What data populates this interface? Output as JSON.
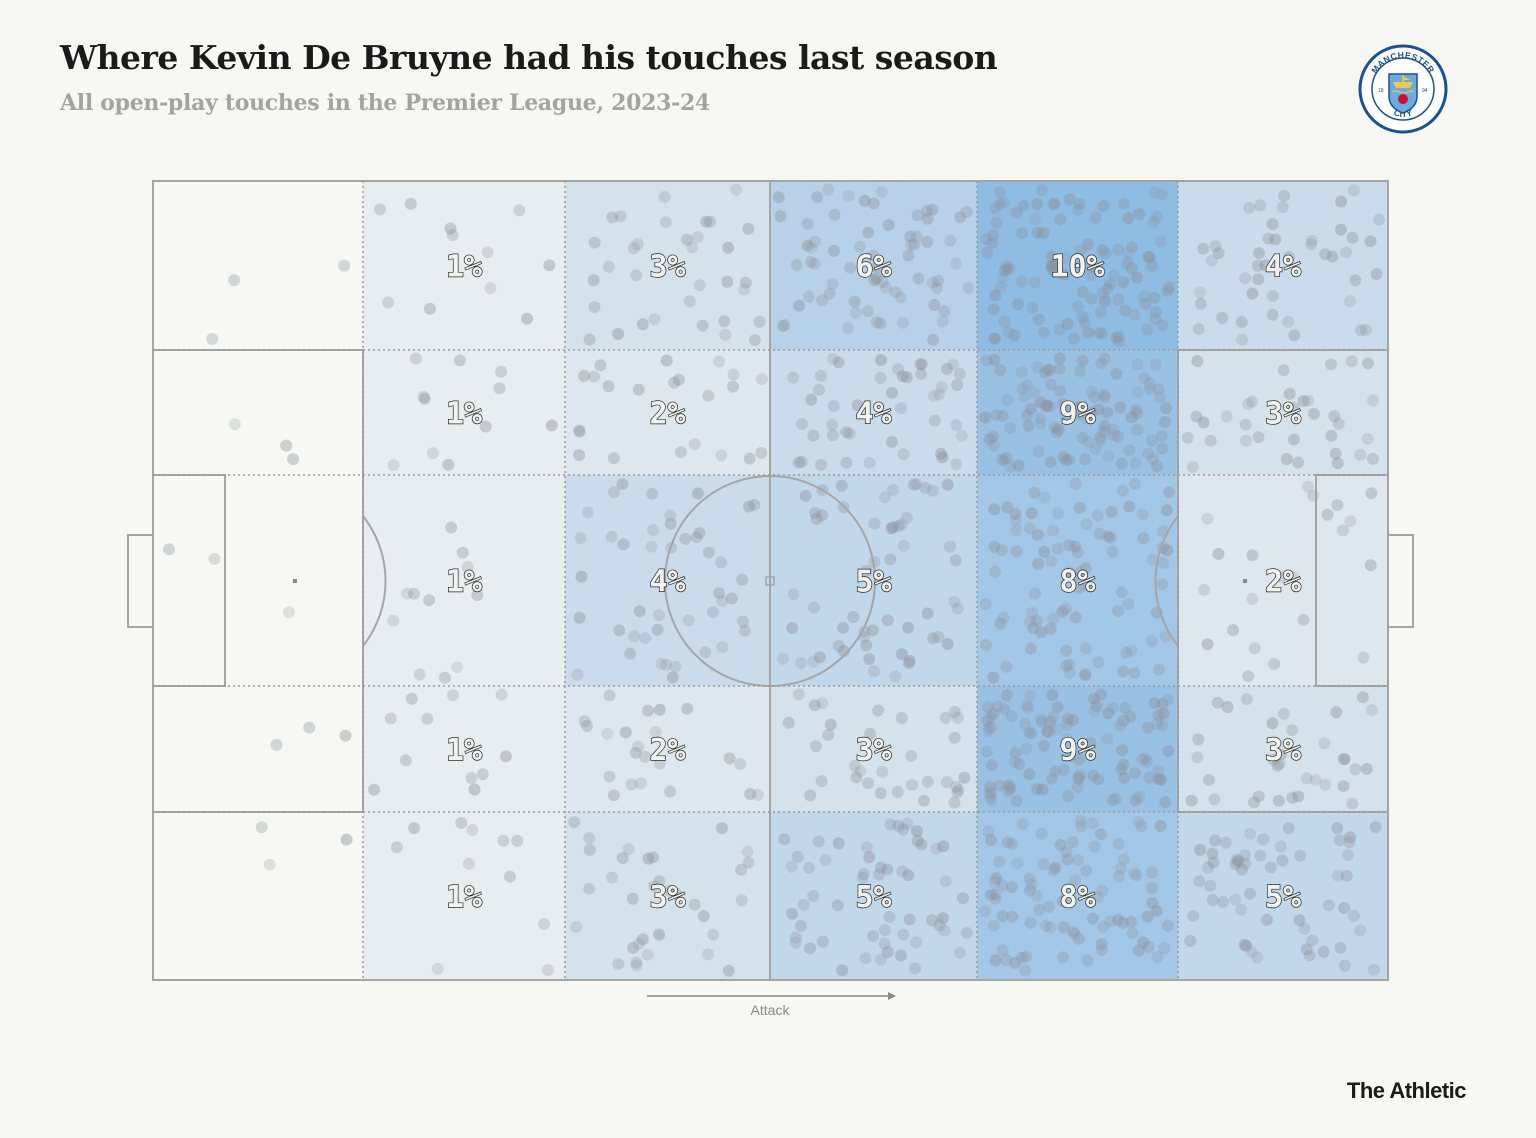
{
  "header": {
    "title": "Where Kevin De Bruyne had his touches last season",
    "subtitle": "All open-play touches in the Premier League, 2023-24"
  },
  "crest": {
    "club_text_top": "MANCHESTER",
    "club_text_bottom": "CITY",
    "year_left": "18",
    "year_right": "94",
    "colors": {
      "ring": "#1c4f93",
      "sky": "#6cabdd",
      "gold": "#f2c94c",
      "red": "#c8102e"
    }
  },
  "footer": {
    "direction_label": "Attack",
    "brand": "The Athletic"
  },
  "colors": {
    "background": "#f7f7f4",
    "pitch_lines": "#a5a5a5",
    "dot": "#8a9099",
    "heat_scale": [
      "#f2f2f0",
      "#8fbce3"
    ]
  },
  "chart_data": {
    "type": "heatmap",
    "title": "Where Kevin De Bruyne had his touches last season",
    "subtitle": "All open-play touches in the Premier League, 2023-24",
    "columns": 6,
    "rows": 5,
    "values": [
      [
        0,
        1,
        3,
        6,
        10,
        4
      ],
      [
        0,
        1,
        2,
        4,
        9,
        3
      ],
      [
        0,
        1,
        4,
        5,
        8,
        2
      ],
      [
        0,
        1,
        2,
        3,
        9,
        3
      ],
      [
        0,
        1,
        3,
        5,
        8,
        5
      ]
    ],
    "labels": [
      [
        "",
        "1%",
        "3%",
        "6%",
        "10%",
        "4%"
      ],
      [
        "",
        "1%",
        "2%",
        "4%",
        "9%",
        "3%"
      ],
      [
        "",
        "1%",
        "4%",
        "5%",
        "8%",
        "2%"
      ],
      [
        "",
        "1%",
        "2%",
        "3%",
        "9%",
        "3%"
      ],
      [
        "",
        "1%",
        "3%",
        "5%",
        "8%",
        "5%"
      ]
    ],
    "unit": "%",
    "direction": "left-to-right",
    "direction_label": "Attack"
  }
}
